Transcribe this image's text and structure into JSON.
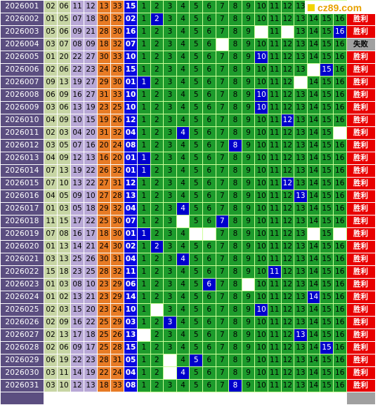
{
  "logo": {
    "text": "cz89.com"
  },
  "colors": {
    "issue_bg": "#5b4e80",
    "green_cell": "#1d9b2c",
    "hit_cell": "#0000cc",
    "win": "#e80000",
    "lose": "#a0a0a0"
  },
  "grid_numbers": [
    "1",
    "2",
    "3",
    "4",
    "5",
    "6",
    "7",
    "8",
    "9",
    "10",
    "11",
    "12",
    "13",
    "14",
    "15",
    "16"
  ],
  "rows": [
    {
      "issue": "2026001",
      "reds": [
        "02",
        "06",
        "11",
        "12",
        "13",
        "33"
      ],
      "blue": "15",
      "hit": null,
      "blanks": [],
      "result": "胜利"
    },
    {
      "issue": "2026002",
      "reds": [
        "01",
        "05",
        "07",
        "18",
        "30",
        "32"
      ],
      "blue": "02",
      "hit": 2,
      "blanks": [],
      "result": "胜利"
    },
    {
      "issue": "2026003",
      "reds": [
        "05",
        "06",
        "09",
        "21",
        "28",
        "30"
      ],
      "blue": "16",
      "hit": 16,
      "blanks": [
        10,
        12
      ],
      "result": "胜利"
    },
    {
      "issue": "2026004",
      "reds": [
        "03",
        "07",
        "08",
        "09",
        "18",
        "32"
      ],
      "blue": "07",
      "hit": null,
      "blanks": [
        7
      ],
      "result": "失败"
    },
    {
      "issue": "2026005",
      "reds": [
        "01",
        "20",
        "22",
        "27",
        "30",
        "33"
      ],
      "blue": "10",
      "hit": 10,
      "blanks": [],
      "result": "胜利"
    },
    {
      "issue": "2026006",
      "reds": [
        "02",
        "06",
        "22",
        "23",
        "24",
        "28"
      ],
      "blue": "15",
      "hit": 15,
      "blanks": [
        14
      ],
      "result": "胜利"
    },
    {
      "issue": "2026007",
      "reds": [
        "09",
        "13",
        "19",
        "27",
        "29",
        "30"
      ],
      "blue": "01",
      "hit": 1,
      "blanks": [
        13
      ],
      "result": "胜利"
    },
    {
      "issue": "2026008",
      "reds": [
        "06",
        "09",
        "16",
        "27",
        "31",
        "33"
      ],
      "blue": "10",
      "hit": 10,
      "blanks": [],
      "result": "胜利"
    },
    {
      "issue": "2026009",
      "reds": [
        "03",
        "06",
        "13",
        "19",
        "23",
        "25"
      ],
      "blue": "10",
      "hit": 10,
      "blanks": [],
      "result": "胜利"
    },
    {
      "issue": "2026010",
      "reds": [
        "04",
        "09",
        "10",
        "15",
        "19",
        "26"
      ],
      "blue": "12",
      "hit": 12,
      "blanks": [],
      "result": "胜利"
    },
    {
      "issue": "2026011",
      "reds": [
        "02",
        "03",
        "04",
        "20",
        "31",
        "32"
      ],
      "blue": "04",
      "hit": 4,
      "blanks": [
        16
      ],
      "result": "胜利"
    },
    {
      "issue": "2026012",
      "reds": [
        "03",
        "05",
        "07",
        "16",
        "20",
        "24"
      ],
      "blue": "08",
      "hit": 8,
      "blanks": [],
      "result": "胜利"
    },
    {
      "issue": "2026013",
      "reds": [
        "04",
        "09",
        "12",
        "13",
        "16",
        "20"
      ],
      "blue": "01",
      "hit": 1,
      "blanks": [],
      "result": "胜利"
    },
    {
      "issue": "2026014",
      "reds": [
        "07",
        "13",
        "19",
        "22",
        "26",
        "32"
      ],
      "blue": "01",
      "hit": 1,
      "blanks": [],
      "result": "胜利"
    },
    {
      "issue": "2026015",
      "reds": [
        "07",
        "10",
        "13",
        "22",
        "27",
        "31"
      ],
      "blue": "12",
      "hit": 12,
      "blanks": [],
      "result": "胜利"
    },
    {
      "issue": "2026016",
      "reds": [
        "04",
        "05",
        "09",
        "10",
        "27",
        "28"
      ],
      "blue": "13",
      "hit": 13,
      "blanks": [],
      "result": "胜利"
    },
    {
      "issue": "2026017",
      "reds": [
        "01",
        "03",
        "05",
        "18",
        "29",
        "32"
      ],
      "blue": "04",
      "hit": 4,
      "blanks": [],
      "result": "胜利"
    },
    {
      "issue": "2026018",
      "reds": [
        "11",
        "15",
        "17",
        "22",
        "25",
        "30"
      ],
      "blue": "07",
      "hit": 7,
      "blanks": [
        4
      ],
      "result": "胜利"
    },
    {
      "issue": "2026019",
      "reds": [
        "07",
        "08",
        "16",
        "17",
        "18",
        "30"
      ],
      "blue": "01",
      "hit": 1,
      "blanks": [
        5,
        6,
        14,
        16
      ],
      "result": "胜利"
    },
    {
      "issue": "2026020",
      "reds": [
        "01",
        "13",
        "14",
        "21",
        "24",
        "30"
      ],
      "blue": "02",
      "hit": 2,
      "blanks": [],
      "result": "胜利"
    },
    {
      "issue": "2026021",
      "reds": [
        "03",
        "13",
        "25",
        "26",
        "30",
        "31"
      ],
      "blue": "04",
      "hit": 4,
      "blanks": [],
      "result": "胜利"
    },
    {
      "issue": "2026022",
      "reds": [
        "15",
        "18",
        "23",
        "25",
        "28",
        "32"
      ],
      "blue": "11",
      "hit": 11,
      "blanks": [],
      "result": "胜利"
    },
    {
      "issue": "2026023",
      "reds": [
        "01",
        "03",
        "08",
        "10",
        "23",
        "29"
      ],
      "blue": "06",
      "hit": 6,
      "blanks": [
        9
      ],
      "result": "胜利"
    },
    {
      "issue": "2026024",
      "reds": [
        "01",
        "02",
        "13",
        "21",
        "23",
        "29"
      ],
      "blue": "14",
      "hit": 14,
      "blanks": [],
      "result": "胜利"
    },
    {
      "issue": "2026025",
      "reds": [
        "02",
        "03",
        "15",
        "20",
        "23",
        "24"
      ],
      "blue": "10",
      "hit": 10,
      "blanks": [
        2
      ],
      "result": "胜利"
    },
    {
      "issue": "2026026",
      "reds": [
        "02",
        "09",
        "16",
        "22",
        "25",
        "29"
      ],
      "blue": "03",
      "hit": 3,
      "blanks": [],
      "result": "胜利"
    },
    {
      "issue": "2026027",
      "reds": [
        "02",
        "13",
        "17",
        "18",
        "25",
        "26"
      ],
      "blue": "13",
      "hit": 13,
      "blanks": [
        1
      ],
      "result": "胜利"
    },
    {
      "issue": "2026028",
      "reds": [
        "02",
        "06",
        "09",
        "17",
        "25",
        "28"
      ],
      "blue": "15",
      "hit": 15,
      "blanks": [],
      "result": "胜利"
    },
    {
      "issue": "2026029",
      "reds": [
        "06",
        "19",
        "22",
        "23",
        "28",
        "31"
      ],
      "blue": "05",
      "hit": 5,
      "blanks": [
        3
      ],
      "result": "胜利"
    },
    {
      "issue": "2026030",
      "reds": [
        "03",
        "11",
        "14",
        "19",
        "22",
        "24"
      ],
      "blue": "04",
      "hit": 4,
      "blanks": [
        3
      ],
      "result": "胜利"
    },
    {
      "issue": "2026031",
      "reds": [
        "03",
        "10",
        "12",
        "13",
        "18",
        "33"
      ],
      "blue": "08",
      "hit": 8,
      "blanks": [],
      "result": "胜利"
    }
  ]
}
